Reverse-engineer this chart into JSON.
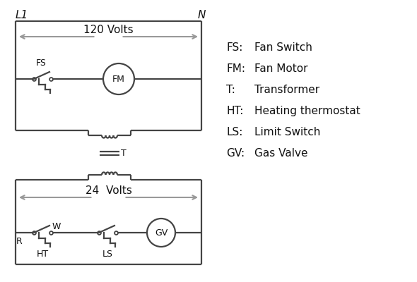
{
  "bg_color": "#ffffff",
  "line_color": "#444444",
  "arrow_color": "#999999",
  "text_color": "#111111",
  "legend": [
    [
      "FS:",
      "Fan Switch"
    ],
    [
      "FM:",
      "Fan Motor"
    ],
    [
      "T:",
      "Transformer"
    ],
    [
      "HT:",
      "Heating thermostat"
    ],
    [
      "LS:",
      "Limit Switch"
    ],
    [
      "GV:",
      "Gas Valve"
    ]
  ],
  "title_L1": "L1",
  "title_N": "N",
  "volts120": "120 Volts",
  "volts24": "24  Volts",
  "label_T": "T",
  "label_FS": "FS",
  "label_FM": "FM",
  "label_R": "R",
  "label_W": "W",
  "label_HT": "HT",
  "label_LS": "LS",
  "label_GV": "GV"
}
